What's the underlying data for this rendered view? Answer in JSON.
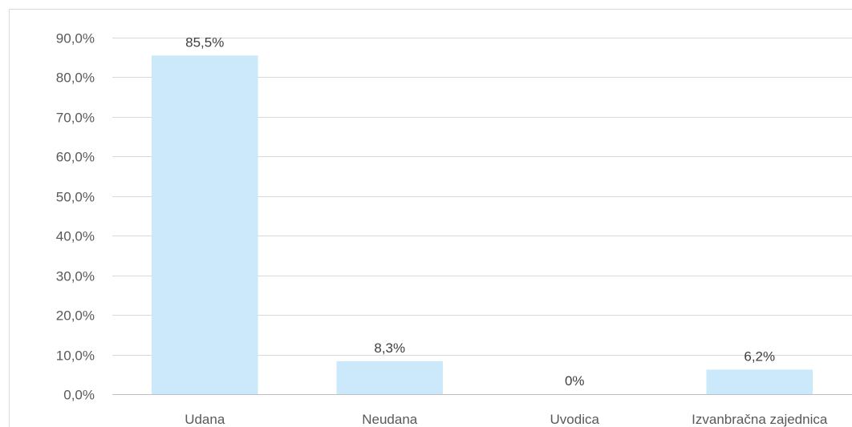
{
  "chart_data": {
    "type": "bar",
    "categories": [
      "Udana",
      "Neudana",
      "Uvodica",
      "Izvanbračna zajednica"
    ],
    "values": [
      85.5,
      8.3,
      0,
      6.2
    ],
    "data_labels": [
      "85,5%",
      "8,3%",
      "0%",
      "6,2%"
    ],
    "y_tick_values": [
      0,
      10,
      20,
      30,
      40,
      50,
      60,
      70,
      80,
      90
    ],
    "y_tick_labels": [
      "0,0%",
      "10,0%",
      "20,0%",
      "30,0%",
      "40,0%",
      "50,0%",
      "60,0%",
      "70,0%",
      "80,0%",
      "90,0%"
    ],
    "ylim": [
      0,
      90
    ],
    "title": "",
    "xlabel": "",
    "ylabel": "",
    "grid": true,
    "legend": "none",
    "colors": {
      "bar": "#cce9fb",
      "grid": "#d9d9d9",
      "axis": "#bfbfbf",
      "frame": "#d9d9d9",
      "tick_text": "#595959",
      "label_text": "#404040"
    }
  }
}
